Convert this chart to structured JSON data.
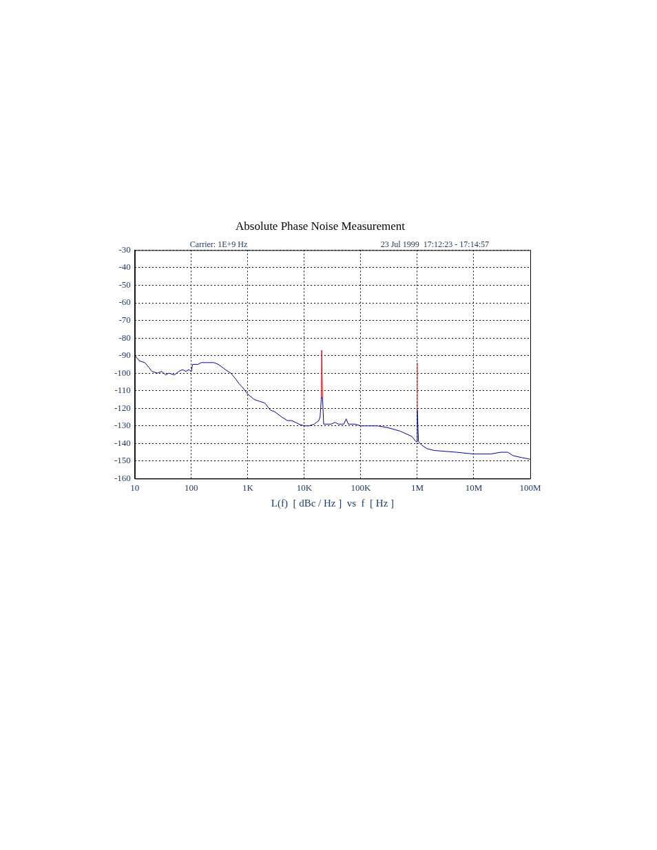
{
  "chart_data": {
    "type": "line",
    "title": "Absolute Phase Noise Measurement",
    "xlabel": "L(f)  [ dBc / Hz ]  vs  f  [ Hz ]",
    "annotations": [
      "Carrier: 1E+9 Hz",
      "23 Jul 1999  17:12:23 - 17:14:57"
    ],
    "log": "x",
    "grid": true,
    "xlim": [
      10,
      100000000
    ],
    "xticks": [
      {
        "value": 10,
        "label": "10"
      },
      {
        "value": 100,
        "label": "100"
      },
      {
        "value": 1000,
        "label": "1K"
      },
      {
        "value": 10000,
        "label": "10K"
      },
      {
        "value": 100000,
        "label": "100K"
      },
      {
        "value": 1000000,
        "label": "1M"
      },
      {
        "value": 10000000,
        "label": "10M"
      },
      {
        "value": 100000000,
        "label": "100M"
      }
    ],
    "ylim": [
      -160,
      -30
    ],
    "yticks": [
      -160,
      -150,
      -140,
      -130,
      -120,
      -110,
      -100,
      -90,
      -80,
      -70,
      -60,
      -50,
      -40,
      -30
    ],
    "series": [
      {
        "color": "#0000a0",
        "x": [
          10,
          12,
          15,
          18,
          20,
          25,
          30,
          35,
          40,
          50,
          60,
          70,
          80,
          90,
          100,
          105,
          130,
          150,
          200,
          250,
          300,
          400,
          500,
          600,
          700,
          800,
          1000,
          1300,
          1600,
          2000,
          2500,
          3000,
          4000,
          5000,
          6000,
          7000,
          8000,
          10000,
          12000,
          15000,
          18000,
          19000,
          20000,
          21000,
          22000,
          30000,
          35000,
          40000,
          50000,
          55000,
          60000,
          80000,
          100000,
          130000,
          200000,
          300000,
          500000,
          800000,
          950000,
          1000000,
          1000000,
          1050000,
          1200000,
          1500000,
          2000000,
          5000000,
          10000000,
          20000000,
          30000000,
          40000000,
          50000000,
          70000000,
          100000000
        ],
        "values": [
          -90,
          -93,
          -94,
          -97,
          -99,
          -100,
          -99,
          -101,
          -100,
          -101,
          -99,
          -98,
          -99,
          -98,
          -99,
          -95,
          -95,
          -94,
          -94,
          -94,
          -95,
          -98,
          -100,
          -103,
          -106,
          -108,
          -112,
          -115,
          -116,
          -117,
          -121,
          -122,
          -125,
          -127,
          -127,
          -128,
          -129,
          -130,
          -130,
          -129,
          -127,
          -125,
          -114,
          -114,
          -129,
          -129,
          -128,
          -129,
          -129,
          -126,
          -129,
          -129,
          -130,
          -130,
          -130,
          -131,
          -133,
          -136,
          -139,
          -139,
          -121,
          -139,
          -141,
          -143,
          -144,
          -145,
          -146,
          -146,
          -145,
          -145,
          -147,
          -148,
          -149
        ]
      },
      {
        "color": "#e00000",
        "x": [
          20000,
          20300,
          21000
        ],
        "values": [
          -114,
          -87,
          -114
        ]
      },
      {
        "color": "#e00000",
        "x": [
          1000000,
          1000000
        ],
        "values": [
          -121,
          -94
        ]
      }
    ]
  }
}
